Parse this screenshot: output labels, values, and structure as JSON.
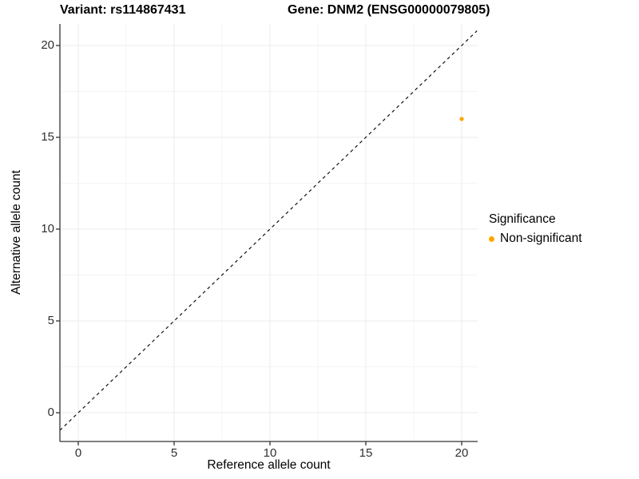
{
  "figure": {
    "title_left": "Variant: rs114867431",
    "title_right": "Gene: DNM2 (ENSG00000079805)"
  },
  "chart_data": {
    "type": "scatter",
    "title": "Variant: rs114867431 — Gene: DNM2 (ENSG00000079805)",
    "xlabel": "Reference allele count",
    "ylabel": "Alternative allele count",
    "xlim": [
      -0.96,
      20.8
    ],
    "ylim": [
      -1.57,
      21.17
    ],
    "x_ticks": [
      0,
      5,
      10,
      15,
      20
    ],
    "y_ticks": [
      0,
      5,
      10,
      15,
      20
    ],
    "x_minor_ticks": [
      2.5,
      7.5,
      12.5,
      17.5
    ],
    "y_minor_ticks": [
      2.5,
      7.5,
      12.5,
      17.5
    ],
    "grid": true,
    "series": [
      {
        "name": "Non-significant",
        "color": "#FFA500",
        "points": [
          {
            "x": 20,
            "y": 16
          }
        ]
      }
    ],
    "reference_line": {
      "type": "identity y=x",
      "style": "dashed",
      "color": "#111111"
    },
    "legend": {
      "title": "Significance",
      "position": "right",
      "items": [
        {
          "label": "Non-significant",
          "color": "#FFA500"
        }
      ]
    }
  },
  "colors": {
    "background": "#ffffff",
    "axis_line": "#333333",
    "tick_label": "#303030",
    "grid_major": "#ebebeb",
    "grid_minor": "#f4f4f4",
    "point": "#FFA500"
  }
}
